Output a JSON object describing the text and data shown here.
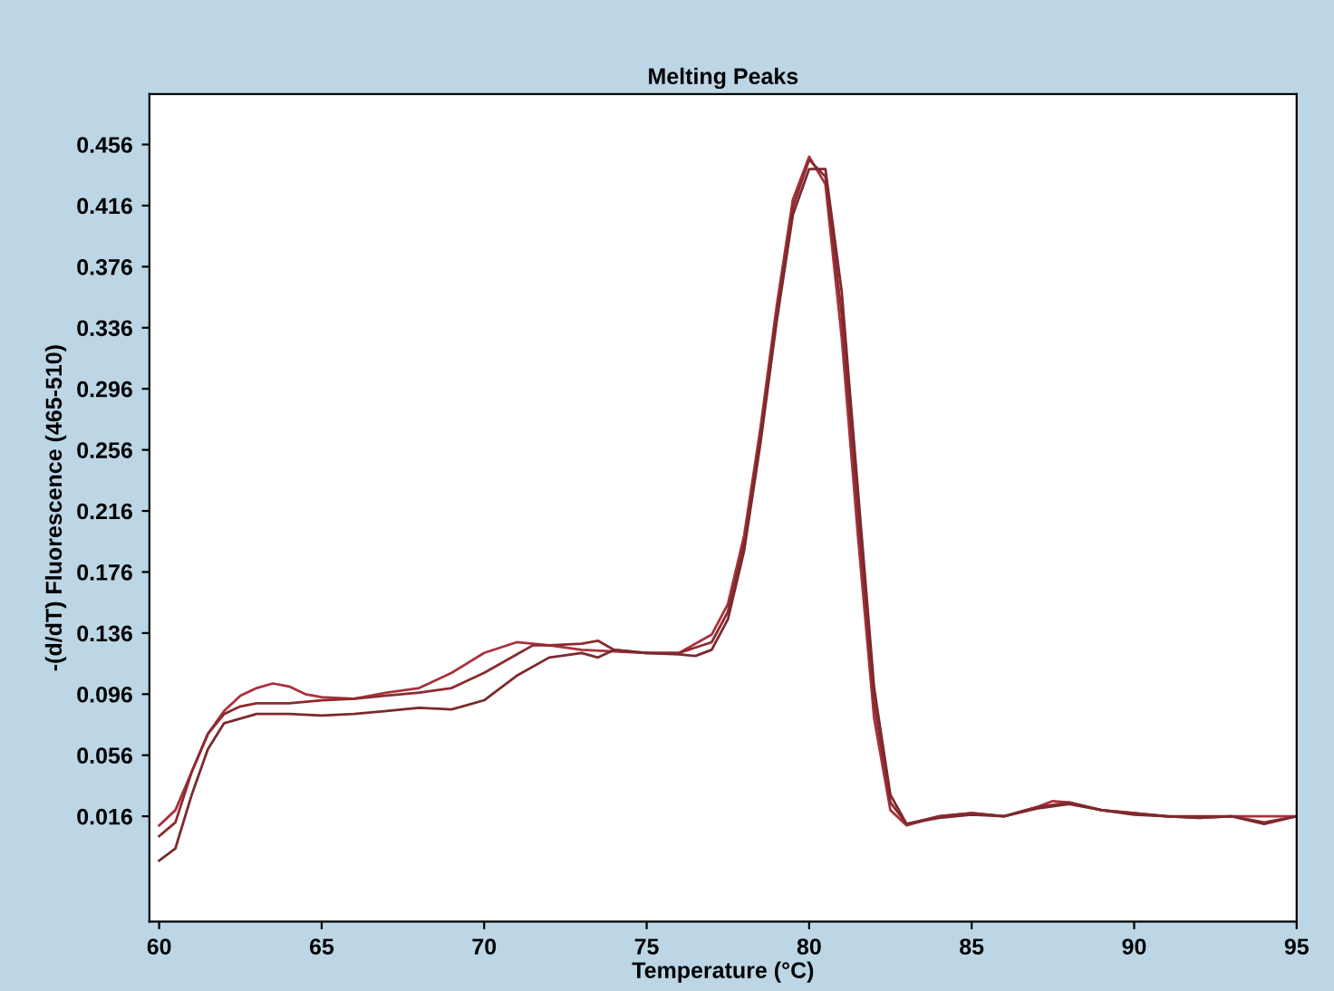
{
  "chart_data": {
    "type": "line",
    "title": "Melting Peaks",
    "xlabel": "Temperature (°C)",
    "ylabel": "-(d/dT) Fluorescence (465-510)",
    "xlim": [
      59.7,
      95
    ],
    "xticks": [
      60,
      65,
      70,
      75,
      80,
      85,
      90,
      95
    ],
    "ylim": [
      -0.053,
      0.489
    ],
    "yticks": [
      0.016,
      0.056,
      0.096,
      0.136,
      0.176,
      0.216,
      0.256,
      0.296,
      0.336,
      0.376,
      0.416,
      0.456
    ],
    "grid": false,
    "legend": false,
    "marker": "none",
    "line_style": "solid",
    "series": [
      {
        "color": "#a8323c",
        "x": [
          60,
          60.5,
          61,
          61.5,
          62,
          62.5,
          63,
          63.5,
          64,
          64.5,
          65,
          66,
          67,
          68,
          69,
          70,
          71,
          72,
          73,
          74,
          75,
          76,
          77,
          77.5,
          78,
          78.5,
          79,
          79.5,
          80,
          80.5,
          81,
          81.5,
          82,
          82.5,
          83,
          84,
          85,
          86,
          87,
          87.5,
          88,
          89,
          90,
          91,
          92,
          93,
          94,
          95
        ],
        "values": [
          0.01,
          0.02,
          0.045,
          0.07,
          0.085,
          0.095,
          0.1,
          0.103,
          0.101,
          0.096,
          0.094,
          0.093,
          0.097,
          0.1,
          0.11,
          0.123,
          0.13,
          0.128,
          0.125,
          0.124,
          0.123,
          0.123,
          0.135,
          0.155,
          0.2,
          0.27,
          0.35,
          0.42,
          0.448,
          0.43,
          0.33,
          0.2,
          0.08,
          0.02,
          0.01,
          0.016,
          0.018,
          0.016,
          0.022,
          0.026,
          0.025,
          0.02,
          0.018,
          0.016,
          0.015,
          0.016,
          0.016,
          0.016
        ]
      },
      {
        "color": "#8c2a30",
        "x": [
          60,
          60.5,
          61,
          61.5,
          62,
          62.5,
          63,
          64,
          65,
          66,
          67,
          68,
          69,
          70,
          71,
          71.5,
          72,
          73,
          73.5,
          74,
          75,
          76,
          77,
          77.5,
          78,
          78.5,
          79,
          79.5,
          80,
          80.5,
          81,
          81.5,
          82,
          82.5,
          83,
          84,
          85,
          86,
          87,
          88,
          89,
          90,
          91,
          92,
          93,
          94,
          95
        ],
        "values": [
          0.003,
          0.012,
          0.045,
          0.07,
          0.083,
          0.088,
          0.09,
          0.09,
          0.092,
          0.093,
          0.095,
          0.097,
          0.1,
          0.11,
          0.122,
          0.128,
          0.128,
          0.129,
          0.131,
          0.125,
          0.123,
          0.123,
          0.13,
          0.15,
          0.195,
          0.265,
          0.345,
          0.415,
          0.446,
          0.435,
          0.345,
          0.215,
          0.09,
          0.025,
          0.011,
          0.016,
          0.018,
          0.016,
          0.022,
          0.025,
          0.02,
          0.018,
          0.016,
          0.016,
          0.016,
          0.012,
          0.016
        ]
      },
      {
        "color": "#7a2a2e",
        "x": [
          60,
          60.5,
          61,
          61.5,
          62,
          63,
          64,
          65,
          66,
          67,
          68,
          69,
          70,
          71,
          72,
          73,
          73.5,
          74,
          75,
          76,
          76.5,
          77,
          77.5,
          78,
          78.5,
          79,
          79.5,
          80,
          80.5,
          81,
          81.5,
          82,
          82.5,
          83,
          84,
          85,
          86,
          87,
          88,
          89,
          90,
          91,
          92,
          93,
          94,
          95
        ],
        "values": [
          -0.013,
          -0.005,
          0.03,
          0.06,
          0.077,
          0.083,
          0.083,
          0.082,
          0.083,
          0.085,
          0.087,
          0.086,
          0.092,
          0.108,
          0.12,
          0.123,
          0.12,
          0.125,
          0.123,
          0.122,
          0.121,
          0.125,
          0.145,
          0.19,
          0.26,
          0.34,
          0.41,
          0.44,
          0.44,
          0.36,
          0.23,
          0.1,
          0.03,
          0.011,
          0.015,
          0.017,
          0.016,
          0.021,
          0.024,
          0.02,
          0.017,
          0.016,
          0.015,
          0.016,
          0.011,
          0.016
        ]
      }
    ]
  }
}
